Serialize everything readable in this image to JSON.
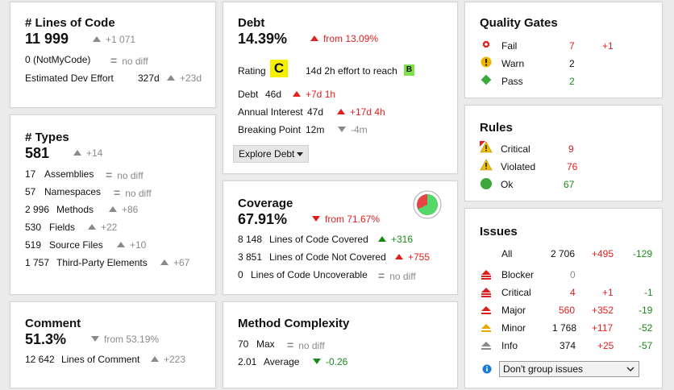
{
  "loc": {
    "title": "# Lines of Code",
    "value": "11 999",
    "delta": "+1 071",
    "notmycode_label": "0  (NotMyCode)",
    "notmycode_delta": "no diff",
    "effort_label": "Estimated Dev Effort",
    "effort_value": "327d",
    "effort_delta": "+23d"
  },
  "types": {
    "title": "# Types",
    "value": "581",
    "delta": "+14",
    "rows": [
      {
        "num": "17",
        "label": "Assemblies",
        "delta": "no diff"
      },
      {
        "num": "57",
        "label": "Namespaces",
        "delta": "no diff"
      },
      {
        "num": "2 996",
        "label": "Methods",
        "delta": "+86"
      },
      {
        "num": "530",
        "label": "Fields",
        "delta": "+22"
      },
      {
        "num": "519",
        "label": "Source Files",
        "delta": "+10"
      },
      {
        "num": "1 757",
        "label": "Third-Party Elements",
        "delta": "+67"
      }
    ]
  },
  "comment": {
    "title": "Comment",
    "value": "51.3%",
    "delta": "from 53.19%",
    "lines_num": "12 642",
    "lines_label": "Lines of Comment",
    "lines_delta": "+223"
  },
  "debt": {
    "title": "Debt",
    "value": "14.39%",
    "delta": "from 13.09%",
    "rating_label": "Rating",
    "rating": "C",
    "effort_text": "14d  2h effort to reach",
    "target_rating": "B",
    "debt_label": "Debt",
    "debt_value": "46d",
    "debt_delta": "+7d  1h",
    "interest_label": "Annual Interest",
    "interest_value": "47d",
    "interest_delta": "+17d  4h",
    "breaking_label": "Breaking Point",
    "breaking_value": "12m",
    "breaking_delta": "-4m",
    "explore_button": "Explore Debt"
  },
  "coverage": {
    "title": "Coverage",
    "value": "67.91%",
    "delta": "from 71.67%",
    "rows": [
      {
        "num": "8 148",
        "label": "Lines of Code Covered",
        "delta": "+316"
      },
      {
        "num": "3 851",
        "label": "Lines of Code Not Covered",
        "delta": "+755"
      },
      {
        "num": "0",
        "label": "Lines of Code Uncoverable",
        "delta": "no diff"
      }
    ],
    "pie_covered_fraction": 0.6791
  },
  "complexity": {
    "title": "Method Complexity",
    "max_num": "70",
    "max_label": "Max",
    "max_delta": "no diff",
    "avg_num": "2.01",
    "avg_label": "Average",
    "avg_delta": "-0.26"
  },
  "quality_gates": {
    "title": "Quality Gates",
    "rows": [
      {
        "label": "Fail",
        "count": "7",
        "delta": "+1"
      },
      {
        "label": "Warn",
        "count": "2",
        "delta": ""
      },
      {
        "label": "Pass",
        "count": "2",
        "delta": ""
      }
    ]
  },
  "rules": {
    "title": "Rules",
    "rows": [
      {
        "label": "Critical",
        "count": "9"
      },
      {
        "label": "Violated",
        "count": "76"
      },
      {
        "label": "Ok",
        "count": "67"
      }
    ]
  },
  "issues": {
    "title": "Issues",
    "rows": [
      {
        "label": "All",
        "count": "2 706",
        "plus": "+495",
        "minus": "-129"
      },
      {
        "label": "Blocker",
        "count": "0",
        "plus": "",
        "minus": ""
      },
      {
        "label": "Critical",
        "count": "4",
        "plus": "+1",
        "minus": "-1"
      },
      {
        "label": "Major",
        "count": "560",
        "plus": "+352",
        "minus": "-19"
      },
      {
        "label": "Minor",
        "count": "1 768",
        "plus": "+117",
        "minus": "-52"
      },
      {
        "label": "Info",
        "count": "374",
        "plus": "+25",
        "minus": "-57"
      }
    ],
    "group_select": "Don't group issues"
  },
  "colors": {
    "red": "#e02020",
    "green": "#1a8a1a",
    "gray": "#8a8a8a",
    "rating_c": "#f5ef00",
    "rating_b": "#7ee04a"
  }
}
